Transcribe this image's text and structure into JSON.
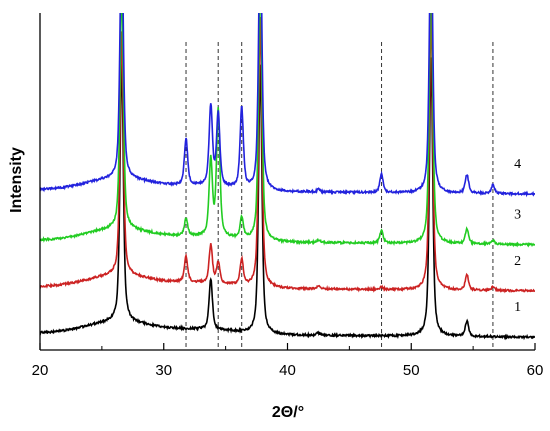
{
  "chart_data": {
    "type": "line",
    "xlabel": "2Θ/°",
    "ylabel": "Intensity",
    "xlim": [
      20,
      60
    ],
    "ylim": [
      0,
      400
    ],
    "x_ticks": [
      "20",
      "30",
      "40",
      "50",
      "60"
    ],
    "grid": false,
    "reference_lines_x": [
      31.8,
      34.4,
      36.3,
      47.6,
      56.6
    ],
    "series": [
      {
        "name": "1",
        "color": "#000000",
        "baseline": 20,
        "peaks": [
          [
            26.6,
            310
          ],
          [
            33.8,
            60
          ],
          [
            37.8,
            320
          ],
          [
            42.5,
            3
          ],
          [
            51.6,
            330
          ],
          [
            54.5,
            18
          ]
        ]
      },
      {
        "name": "2",
        "color": "#cc2222",
        "baseline": 75,
        "peaks": [
          [
            26.6,
            290
          ],
          [
            31.8,
            30
          ],
          [
            33.8,
            45
          ],
          [
            34.4,
            25
          ],
          [
            36.3,
            30
          ],
          [
            37.8,
            320
          ],
          [
            42.5,
            3
          ],
          [
            47.6,
            3
          ],
          [
            51.6,
            330
          ],
          [
            54.5,
            18
          ],
          [
            56.6,
            4
          ]
        ]
      },
      {
        "name": "3",
        "color": "#22cc22",
        "baseline": 130,
        "peaks": [
          [
            26.6,
            290
          ],
          [
            31.8,
            20
          ],
          [
            33.8,
            90
          ],
          [
            34.4,
            150
          ],
          [
            36.3,
            25
          ],
          [
            37.8,
            320
          ],
          [
            42.5,
            3
          ],
          [
            47.6,
            15
          ],
          [
            51.6,
            330
          ],
          [
            54.5,
            18
          ],
          [
            56.6,
            4
          ]
        ]
      },
      {
        "name": "4",
        "color": "#2222dd",
        "baseline": 190,
        "peaks": [
          [
            26.6,
            300
          ],
          [
            31.8,
            55
          ],
          [
            33.8,
            95
          ],
          [
            34.4,
            85
          ],
          [
            36.3,
            95
          ],
          [
            37.8,
            320
          ],
          [
            42.5,
            3
          ],
          [
            47.6,
            22
          ],
          [
            51.6,
            330
          ],
          [
            54.5,
            22
          ],
          [
            56.6,
            10
          ]
        ]
      }
    ]
  }
}
